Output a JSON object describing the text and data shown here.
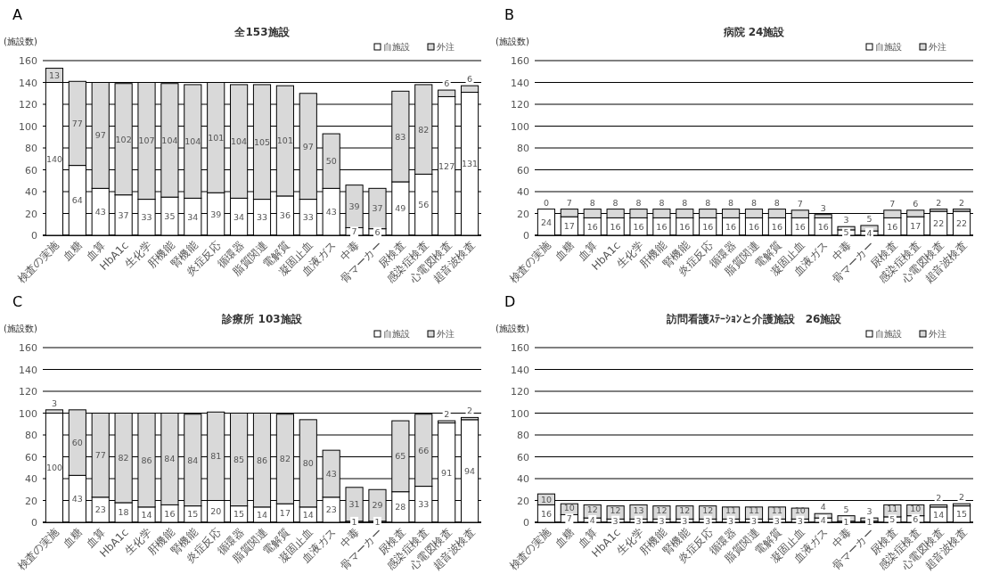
{
  "chart_data": [
    {
      "type": "bar",
      "stacked": true,
      "annotations": [
        "A"
      ],
      "title": "全153施設",
      "ylabel": "(施設数)",
      "ylim": [
        0,
        160
      ],
      "yticks": [
        0,
        20,
        40,
        60,
        80,
        100,
        120,
        140,
        160
      ],
      "grid": "y",
      "legend": "top right",
      "data_labels": true,
      "categories": [
        "検査の実施",
        "血糖",
        "血算",
        "HbA1c",
        "生化学",
        "肝機能",
        "腎機能",
        "炎症反応",
        "循環器",
        "脂質関連",
        "電解質",
        "凝固止血",
        "血液ガス",
        "中毒",
        "骨マーカー",
        "尿検査",
        "感染症検査",
        "心電図検査",
        "超音波検査"
      ],
      "series": [
        {
          "name": "自施設",
          "color": "#ffffff",
          "values": [
            140,
            64,
            43,
            37,
            33,
            35,
            34,
            39,
            34,
            33,
            36,
            33,
            43,
            7,
            6,
            49,
            56,
            127,
            131
          ]
        },
        {
          "name": "外注",
          "color": "#d9d9d9",
          "values": [
            13,
            77,
            97,
            102,
            107,
            104,
            104,
            101,
            104,
            105,
            101,
            97,
            50,
            39,
            37,
            83,
            82,
            6,
            6
          ]
        }
      ]
    },
    {
      "type": "bar",
      "stacked": true,
      "annotations": [
        "B"
      ],
      "title": "病院 24施設",
      "ylabel": "(施設数)",
      "ylim": [
        0,
        160
      ],
      "yticks": [
        0,
        20,
        40,
        60,
        80,
        100,
        120,
        140,
        160
      ],
      "grid": "y",
      "legend": "top right",
      "data_labels": true,
      "categories": [
        "検査の実施",
        "血糖",
        "血算",
        "HbA1c",
        "生化学",
        "肝機能",
        "腎機能",
        "炎症反応",
        "循環器",
        "脂質関連",
        "電解質",
        "凝固止血",
        "血液ガス",
        "中毒",
        "骨マーカー",
        "尿検査",
        "感染症検査",
        "心電図検査",
        "超音波検査"
      ],
      "series": [
        {
          "name": "自施設",
          "color": "#ffffff",
          "values": [
            24,
            17,
            16,
            16,
            16,
            16,
            16,
            16,
            16,
            16,
            16,
            16,
            16,
            5,
            4,
            16,
            17,
            22,
            22
          ]
        },
        {
          "name": "外注",
          "color": "#d9d9d9",
          "values": [
            0,
            7,
            8,
            8,
            8,
            8,
            8,
            8,
            8,
            8,
            8,
            7,
            3,
            3,
            5,
            7,
            6,
            2,
            2
          ]
        }
      ]
    },
    {
      "type": "bar",
      "stacked": true,
      "annotations": [
        "C"
      ],
      "title": "診療所 103施設",
      "ylabel": "(施設数)",
      "ylim": [
        0,
        160
      ],
      "yticks": [
        0,
        20,
        40,
        60,
        80,
        100,
        120,
        140,
        160
      ],
      "grid": "y",
      "legend": "top right",
      "data_labels": true,
      "categories": [
        "検査の実施",
        "血糖",
        "血算",
        "HbA1c",
        "生化学",
        "肝機能",
        "腎機能",
        "炎症反応",
        "循環器",
        "脂質関連",
        "電解質",
        "凝固止血",
        "血液ガス",
        "中毒",
        "骨マーカー",
        "尿検査",
        "感染症検査",
        "心電図検査",
        "超音波検査"
      ],
      "series": [
        {
          "name": "自施設",
          "color": "#ffffff",
          "values": [
            100,
            43,
            23,
            18,
            14,
            16,
            15,
            20,
            15,
            14,
            17,
            14,
            23,
            1,
            1,
            28,
            33,
            91,
            94
          ]
        },
        {
          "name": "外注",
          "color": "#d9d9d9",
          "values": [
            3,
            60,
            77,
            82,
            86,
            84,
            84,
            81,
            85,
            86,
            82,
            80,
            43,
            31,
            29,
            65,
            66,
            2,
            2
          ]
        }
      ]
    },
    {
      "type": "bar",
      "stacked": true,
      "annotations": [
        "D"
      ],
      "title": "訪問看護ｽﾃｰｼｮﾝと介護施設　26施設",
      "ylabel": "(施設数)",
      "ylim": [
        0,
        160
      ],
      "yticks": [
        0,
        20,
        40,
        60,
        80,
        100,
        120,
        140,
        160
      ],
      "grid": "y",
      "legend": "top right",
      "data_labels": true,
      "categories": [
        "検査の実施",
        "血糖",
        "血算",
        "HbA1c",
        "生化学",
        "肝機能",
        "腎機能",
        "炎症反応",
        "循環器",
        "脂質関連",
        "電解質",
        "凝固止血",
        "血液ガス",
        "中毒",
        "骨マーカー",
        "尿検査",
        "感染症検査",
        "心電図検査",
        "超音波検査"
      ],
      "series": [
        {
          "name": "自施設",
          "color": "#ffffff",
          "values": [
            16,
            7,
            4,
            3,
            3,
            3,
            3,
            3,
            3,
            3,
            3,
            3,
            4,
            1,
            1,
            5,
            6,
            14,
            15
          ]
        },
        {
          "name": "外注",
          "color": "#d9d9d9",
          "values": [
            10,
            10,
            12,
            12,
            13,
            12,
            12,
            12,
            11,
            11,
            11,
            10,
            4,
            5,
            3,
            11,
            10,
            2,
            2
          ]
        }
      ]
    }
  ]
}
